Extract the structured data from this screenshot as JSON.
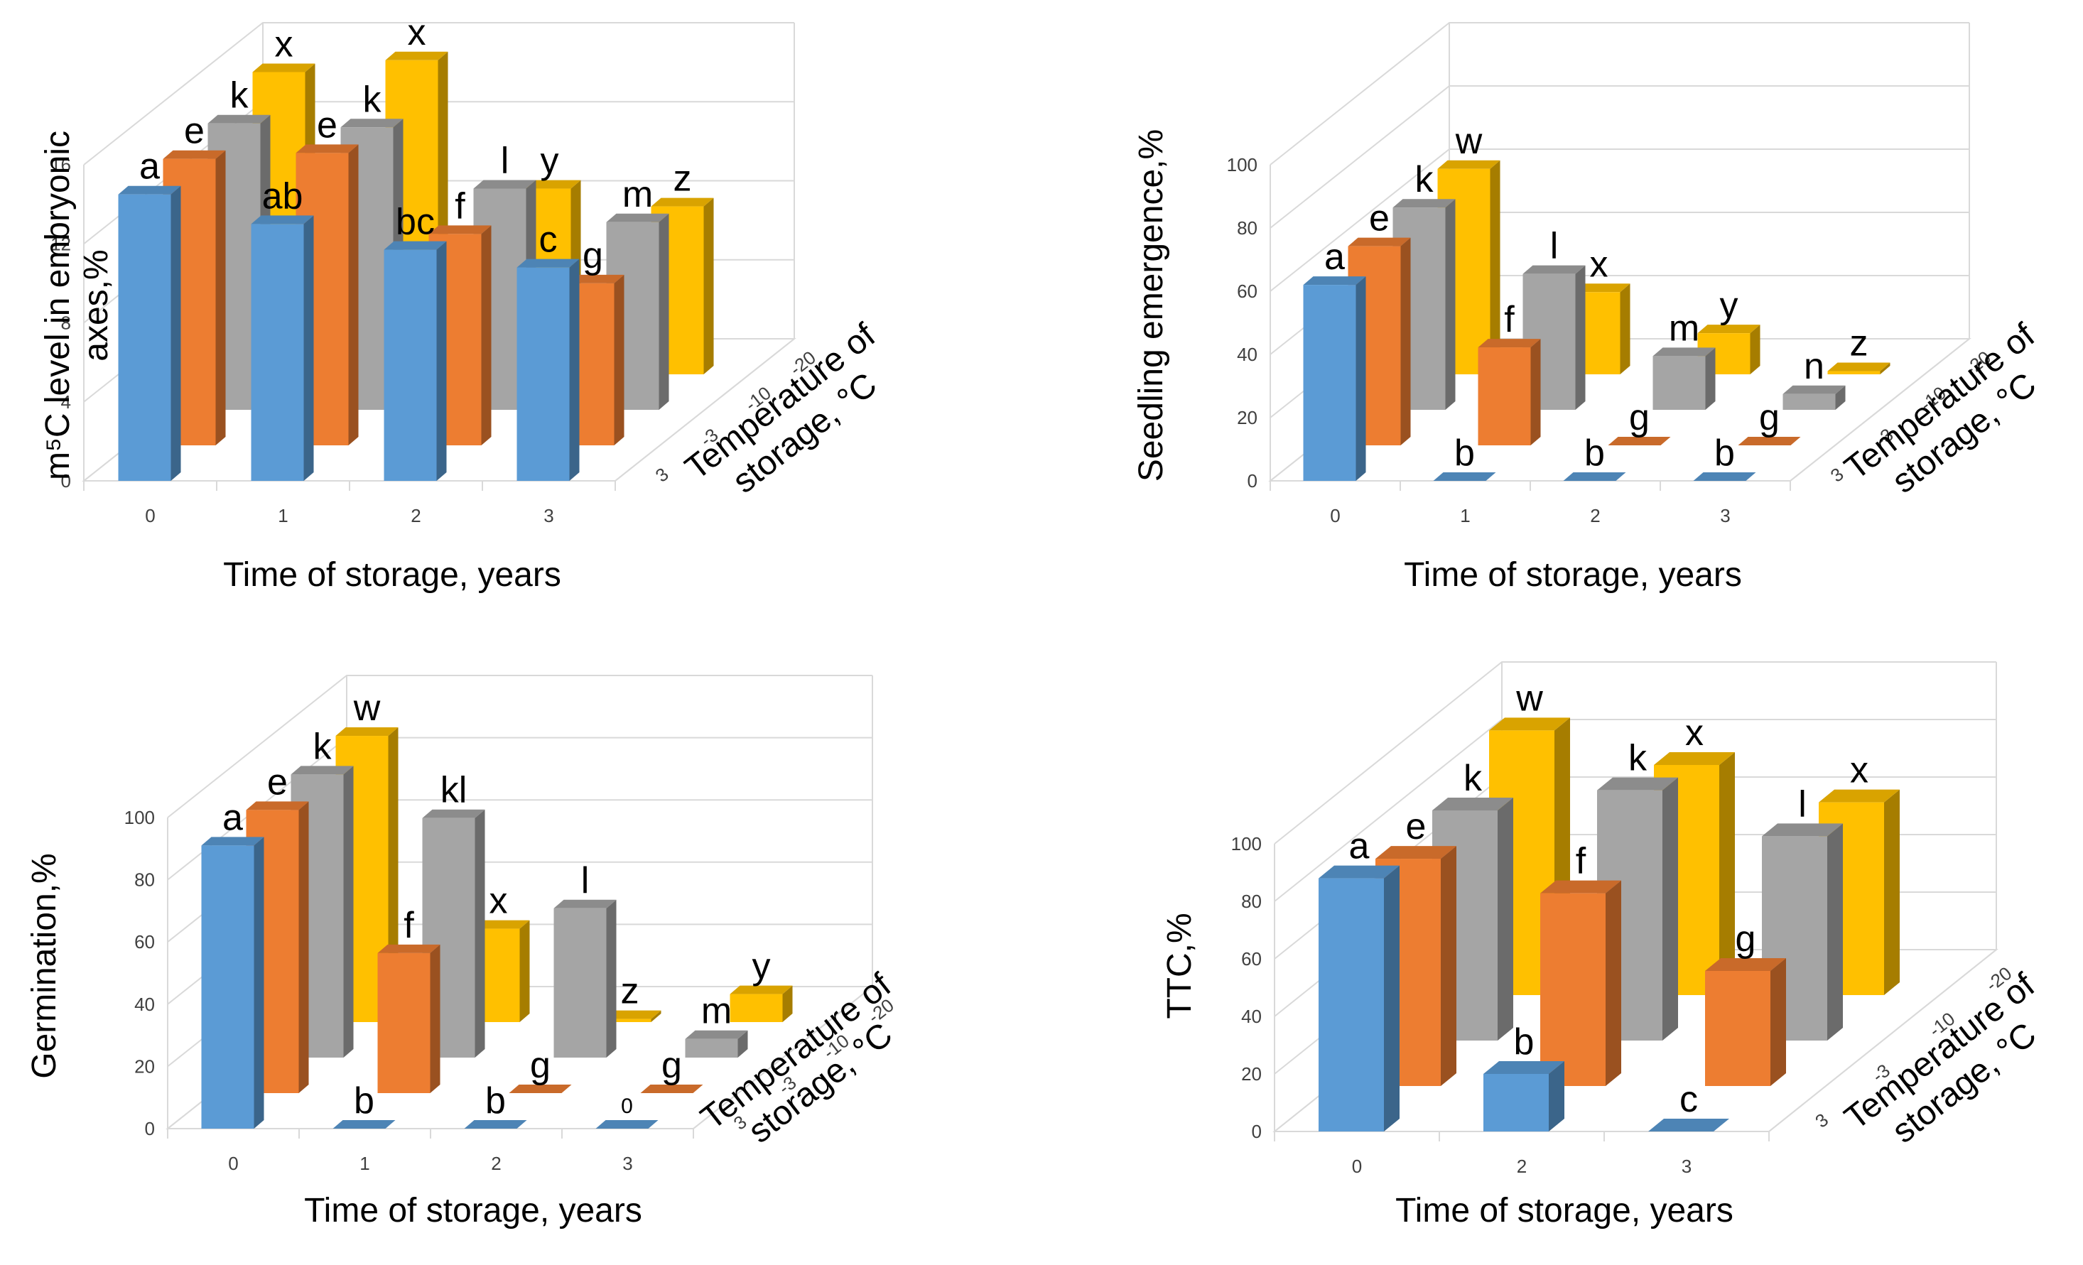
{
  "colors": {
    "3": "#5B9BD5",
    "-3": "#ED7D31",
    "-10": "#A5A5A5",
    "-20": "#FFC000",
    "grid": "#D9D9D9",
    "text": "#404040"
  },
  "chart_data": [
    {
      "type": "bar",
      "title": "",
      "ylabel_lines": [
        "m⁵C level in embryonic",
        "axes,%"
      ],
      "xlabel": "Time of storage, years",
      "zlabel_lines": [
        "Temperature of",
        "storage, °C"
      ],
      "categories": [
        "0",
        "1",
        "2",
        "3"
      ],
      "y_ticks": [
        "0",
        "4",
        "8",
        "12",
        "16"
      ],
      "ylim": [
        0,
        16
      ],
      "series": [
        {
          "name": "3",
          "values": [
            14.5,
            13,
            11.7,
            10.8
          ],
          "labels": [
            "a",
            "ab",
            "bc",
            "c"
          ]
        },
        {
          "name": "-3",
          "values": [
            14.5,
            14.8,
            10.7,
            8.2
          ],
          "labels": [
            "e",
            "e",
            "f",
            "g"
          ]
        },
        {
          "name": "-10",
          "values": [
            14.5,
            14.3,
            11.2,
            9.5
          ],
          "labels": [
            "k",
            "k",
            "l",
            "m"
          ]
        },
        {
          "name": "-20",
          "values": [
            15.3,
            15.9,
            9.4,
            8.5
          ],
          "labels": [
            "x",
            "x",
            "y",
            "z"
          ]
        }
      ]
    },
    {
      "type": "bar",
      "title": "",
      "ylabel_lines": [
        "Seedling emergence,%"
      ],
      "xlabel": "Time of storage, years",
      "zlabel_lines": [
        "Temperature of",
        "storage, °C"
      ],
      "categories": [
        "0",
        "1",
        "2",
        "3"
      ],
      "y_ticks": [
        "0",
        "20",
        "40",
        "60",
        "80",
        "100"
      ],
      "ylim": [
        0,
        100
      ],
      "series": [
        {
          "name": "3",
          "values": [
            62,
            0,
            0,
            0
          ],
          "labels": [
            "a",
            "b",
            "b",
            "b"
          ]
        },
        {
          "name": "-3",
          "values": [
            63,
            31,
            0,
            0
          ],
          "labels": [
            "e",
            "f",
            "g",
            "g"
          ]
        },
        {
          "name": "-10",
          "values": [
            64,
            43,
            17,
            5
          ],
          "labels": [
            "k",
            "l",
            "m",
            "n"
          ]
        },
        {
          "name": "-20",
          "values": [
            65,
            26,
            13,
            1
          ],
          "labels": [
            "w",
            "x",
            "y",
            "z"
          ]
        }
      ]
    },
    {
      "type": "bar",
      "title": "",
      "ylabel_lines": [
        "Germination,%"
      ],
      "xlabel": "Time of storage, years",
      "zlabel_lines": [
        "Temperature of",
        "storage, °C"
      ],
      "categories": [
        "0",
        "1",
        "2",
        "3"
      ],
      "y_ticks": [
        "0",
        "20",
        "40",
        "60",
        "80",
        "100"
      ],
      "ylim": [
        0,
        100
      ],
      "series": [
        {
          "name": "3",
          "values": [
            91,
            0,
            0,
            0
          ],
          "labels": [
            "a",
            "b",
            "b",
            "0"
          ]
        },
        {
          "name": "-3",
          "values": [
            91,
            45,
            0,
            0
          ],
          "labels": [
            "e",
            "f",
            "g",
            "g"
          ]
        },
        {
          "name": "-10",
          "values": [
            91,
            77,
            48,
            6
          ],
          "labels": [
            "k",
            "kl",
            "l",
            "m"
          ]
        },
        {
          "name": "-20",
          "values": [
            92,
            30,
            1,
            9
          ],
          "labels": [
            "w",
            "x",
            "z",
            "y"
          ]
        }
      ]
    },
    {
      "type": "bar",
      "title": "",
      "ylabel_lines": [
        "TTC,%"
      ],
      "xlabel": "Time of storage, years",
      "zlabel_lines": [
        "Temperature of",
        "storage, °C"
      ],
      "categories": [
        "0",
        "2",
        "3"
      ],
      "y_ticks": [
        "0",
        "20",
        "40",
        "60",
        "80",
        "100"
      ],
      "ylim": [
        0,
        100
      ],
      "series": [
        {
          "name": "3",
          "values": [
            88,
            20,
            0
          ],
          "labels": [
            "a",
            "b",
            "c"
          ]
        },
        {
          "name": "-3",
          "values": [
            79,
            67,
            40
          ],
          "labels": [
            "e",
            "f",
            "g"
          ]
        },
        {
          "name": "-10",
          "values": [
            80,
            87,
            71
          ],
          "labels": [
            "k",
            "k",
            "l"
          ]
        },
        {
          "name": "-20",
          "values": [
            92,
            80,
            67
          ],
          "labels": [
            "w",
            "x",
            "x"
          ]
        }
      ]
    }
  ]
}
